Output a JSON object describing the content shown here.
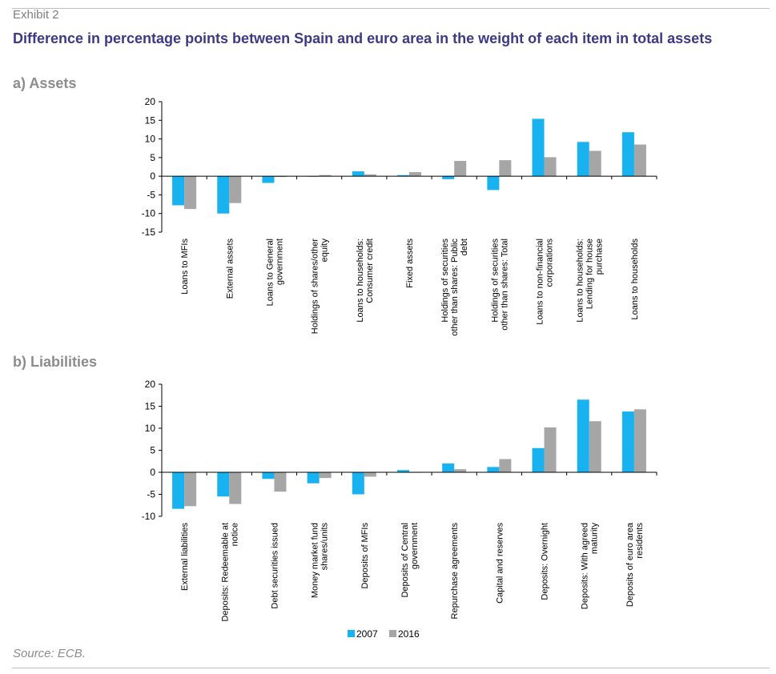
{
  "header": {
    "exhibit": "Exhibit 2",
    "title": "Difference in percentage points between Spain and euro area in the weight of each item in total assets"
  },
  "footer": {
    "source": "Source: ECB."
  },
  "colors": {
    "series_2007": "#17b2ef",
    "series_2016": "#a6a6a6",
    "title": "#3d3a85"
  },
  "chart_data": [
    {
      "type": "bar",
      "title": "a) Assets",
      "ylim": [
        -15,
        20
      ],
      "yticks": [
        -15,
        -10,
        -5,
        0,
        5,
        10,
        15,
        20
      ],
      "categories": [
        [
          "Loans to MFIs"
        ],
        [
          "External assets"
        ],
        [
          "Loans to General",
          "government"
        ],
        [
          "Holdings of shares/other",
          "equity"
        ],
        [
          "Loans to households:",
          "Consumer credit"
        ],
        [
          "Fixed assets"
        ],
        [
          "Holdings of securities",
          "other than shares: Public",
          "debt"
        ],
        [
          "Holdings of securities",
          "other than shares: Total"
        ],
        [
          "Loans to non-financial",
          "corporations"
        ],
        [
          "Loans to households:",
          "Lending for house",
          "purchase"
        ],
        [
          "Loans to households"
        ]
      ],
      "series": [
        {
          "name": "2007",
          "values": [
            -7.8,
            -10.0,
            -1.8,
            0.0,
            1.3,
            0.3,
            -0.8,
            -3.7,
            15.4,
            9.2,
            11.8
          ]
        },
        {
          "name": "2016",
          "values": [
            -8.8,
            -7.2,
            -0.2,
            0.3,
            0.5,
            1.1,
            4.1,
            4.3,
            5.1,
            6.8,
            8.5
          ]
        }
      ]
    },
    {
      "type": "bar",
      "title": "b) Liabilities",
      "ylim": [
        -10,
        20
      ],
      "yticks": [
        -10,
        -5,
        0,
        5,
        10,
        15,
        20
      ],
      "categories": [
        [
          "External liabilities"
        ],
        [
          "Deposits: Redeemable at",
          "notice"
        ],
        [
          "Debt securities issued"
        ],
        [
          "Money market fund",
          "shares/units"
        ],
        [
          "Deposits of MFIs"
        ],
        [
          "Deposits of Central",
          "government"
        ],
        [
          "Repurchase agreements"
        ],
        [
          "Capital and reserves"
        ],
        [
          "Deposits: Overnight"
        ],
        [
          "Deposits: With agreed",
          "maturity"
        ],
        [
          "Deposits of euro area",
          "residents"
        ]
      ],
      "series": [
        {
          "name": "2007",
          "values": [
            -8.3,
            -5.5,
            -1.5,
            -2.5,
            -5.0,
            0.5,
            2.0,
            1.2,
            5.5,
            16.5,
            13.8
          ]
        },
        {
          "name": "2016",
          "values": [
            -7.7,
            -7.2,
            -4.4,
            -1.3,
            -1.0,
            0.0,
            0.7,
            3.0,
            10.2,
            11.6,
            14.3
          ]
        }
      ],
      "legend": {
        "position": "bottom"
      }
    }
  ]
}
